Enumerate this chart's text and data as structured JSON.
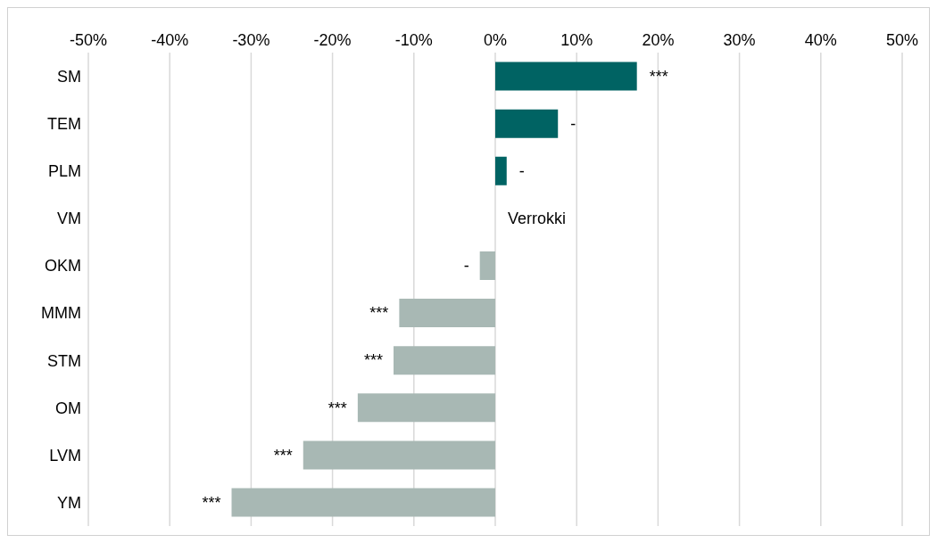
{
  "chart_data": {
    "type": "bar",
    "orientation": "horizontal",
    "categories": [
      "SM",
      "TEM",
      "PLM",
      "VM",
      "OKM",
      "MMM",
      "STM",
      "OM",
      "LVM",
      "YM"
    ],
    "values": [
      17.4,
      7.7,
      1.4,
      0,
      -1.9,
      -11.8,
      -12.5,
      -16.9,
      -23.6,
      -32.4
    ],
    "colors": [
      "#006363",
      "#006363",
      "#006363",
      "#006363",
      "#a8b8b4",
      "#a8b8b4",
      "#a8b8b4",
      "#a8b8b4",
      "#a8b8b4",
      "#a8b8b4"
    ],
    "value_labels": [
      "***",
      "-",
      "-",
      "Verrokki",
      "-",
      "***",
      "***",
      "***",
      "***",
      "***"
    ],
    "xlim": [
      -50,
      50
    ],
    "xticks": [
      {
        "value": -50,
        "label": "-50%"
      },
      {
        "value": -40,
        "label": "-40%"
      },
      {
        "value": -30,
        "label": "-30%"
      },
      {
        "value": -20,
        "label": "-20%"
      },
      {
        "value": -10,
        "label": "-10%"
      },
      {
        "value": 0,
        "label": "0%"
      },
      {
        "value": 10,
        "label": "10%"
      },
      {
        "value": 20,
        "label": "20%"
      },
      {
        "value": 30,
        "label": "30%"
      },
      {
        "value": 40,
        "label": "40%"
      },
      {
        "value": 50,
        "label": "50%"
      }
    ],
    "grid": "x"
  }
}
